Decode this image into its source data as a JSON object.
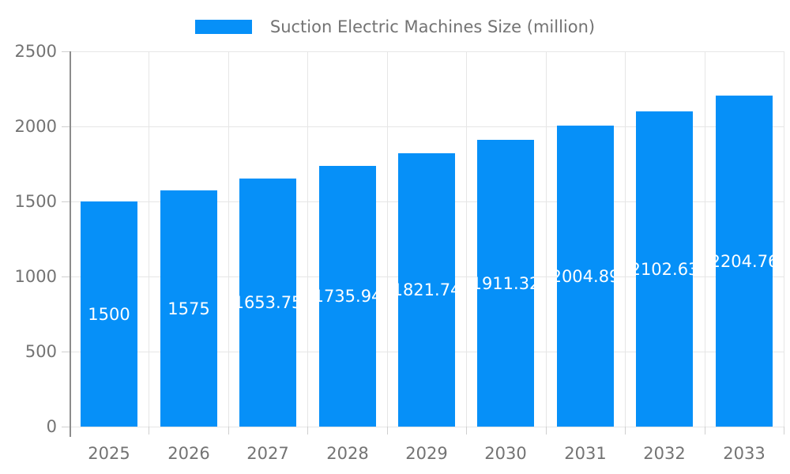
{
  "legend": {
    "label": "Suction Electric Machines Size (million)"
  },
  "colors": {
    "bar": "#0690f8",
    "bar_label": "#ffffff",
    "axis_text": "#737373",
    "grid_line": "#e6e6e6",
    "axis_line": "#8c8c8c",
    "tick_mark": "#cfcfcf",
    "background": "#ffffff"
  },
  "chart_data": {
    "type": "bar",
    "title": "Suction Electric Machines Size (million)",
    "categories": [
      "2025",
      "2026",
      "2027",
      "2028",
      "2029",
      "2030",
      "2031",
      "2032",
      "2033"
    ],
    "values": [
      1500,
      1575,
      1653.75,
      1735.94,
      1821.74,
      1911.32,
      2004.89,
      2102.63,
      2204.76
    ],
    "value_labels": [
      "1500",
      "1575",
      "1653.75",
      "1735.94",
      "1821.74",
      "1911.32",
      "2004.89",
      "2102.63",
      "2204.76"
    ],
    "xlabel": "",
    "ylabel": "",
    "ylim": [
      0,
      2500
    ],
    "yticks": [
      0,
      500,
      1000,
      1500,
      2000,
      2500
    ],
    "ytick_labels": [
      "0",
      "500",
      "1000",
      "1500",
      "2000",
      "2500"
    ],
    "grid": true,
    "legend_position": "top",
    "value_label_position": "center-inside",
    "series": [
      {
        "name": "Suction Electric Machines Size (million)",
        "values": [
          1500,
          1575,
          1653.75,
          1735.94,
          1821.74,
          1911.32,
          2004.89,
          2102.63,
          2204.76
        ]
      }
    ]
  }
}
